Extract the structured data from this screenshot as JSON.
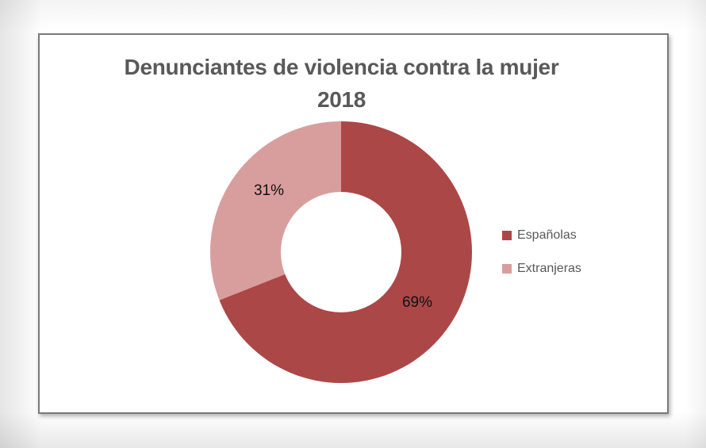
{
  "page": {
    "background_color": "#ffffff",
    "frame_border_color": "#7a7a7a",
    "title_color": "#595959",
    "legend_text_color": "#595959",
    "data_label_color": "#111111"
  },
  "chart_data": {
    "type": "pie",
    "subtype": "donut",
    "title": "Denunciantes de violencia contra la mujer",
    "subtitle": "2018",
    "categories": [
      "Españolas",
      "Extranjeras"
    ],
    "values": [
      69,
      31
    ],
    "data_labels": [
      "69%",
      "31%"
    ],
    "colors": [
      "#AC4747",
      "#D89E9E"
    ],
    "start_angle_deg": 0,
    "direction": "clockwise",
    "hole_ratio": 0.46,
    "legend_position": "right",
    "grid": false
  }
}
